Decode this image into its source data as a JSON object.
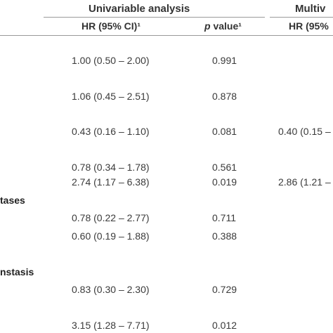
{
  "headers": {
    "group1": "Univariable analysis",
    "group2": "Multiv",
    "hr_col": "HR (95% CI)¹",
    "p_col_italic": "p",
    "p_col_rest": " value¹",
    "hr_col2": "HR (95%"
  },
  "row_labels": {
    "label1": "tases",
    "label2": "nstasis"
  },
  "rows": [
    {
      "hr": "1.00 (0.50 – 2.00)",
      "p": "0.991",
      "hr2": ""
    },
    {
      "hr": "1.06 (0.45 – 2.51)",
      "p": "0.878",
      "hr2": ""
    },
    {
      "hr": "0.43 (0.16 – 1.10)",
      "p": "0.081",
      "hr2": "0.40 (0.15 –"
    },
    {
      "hr": "0.78 (0.34 – 1.78)",
      "p": "0.561",
      "hr2": ""
    },
    {
      "hr": "2.74 (1.17 – 6.38)",
      "p": "0.019",
      "hr2": "2.86 (1.21 –"
    },
    {
      "hr": "0.78 (0.22 – 2.77)",
      "p": "0.711",
      "hr2": ""
    },
    {
      "hr": "0.60 (0.19 – 1.88)",
      "p": "0.388",
      "hr2": ""
    },
    {
      "hr": "0.83 (0.30 – 2.30)",
      "p": "0.729",
      "hr2": ""
    },
    {
      "hr": "3.15 (1.28 – 7.71)",
      "p": "0.012",
      "hr2": ""
    }
  ]
}
